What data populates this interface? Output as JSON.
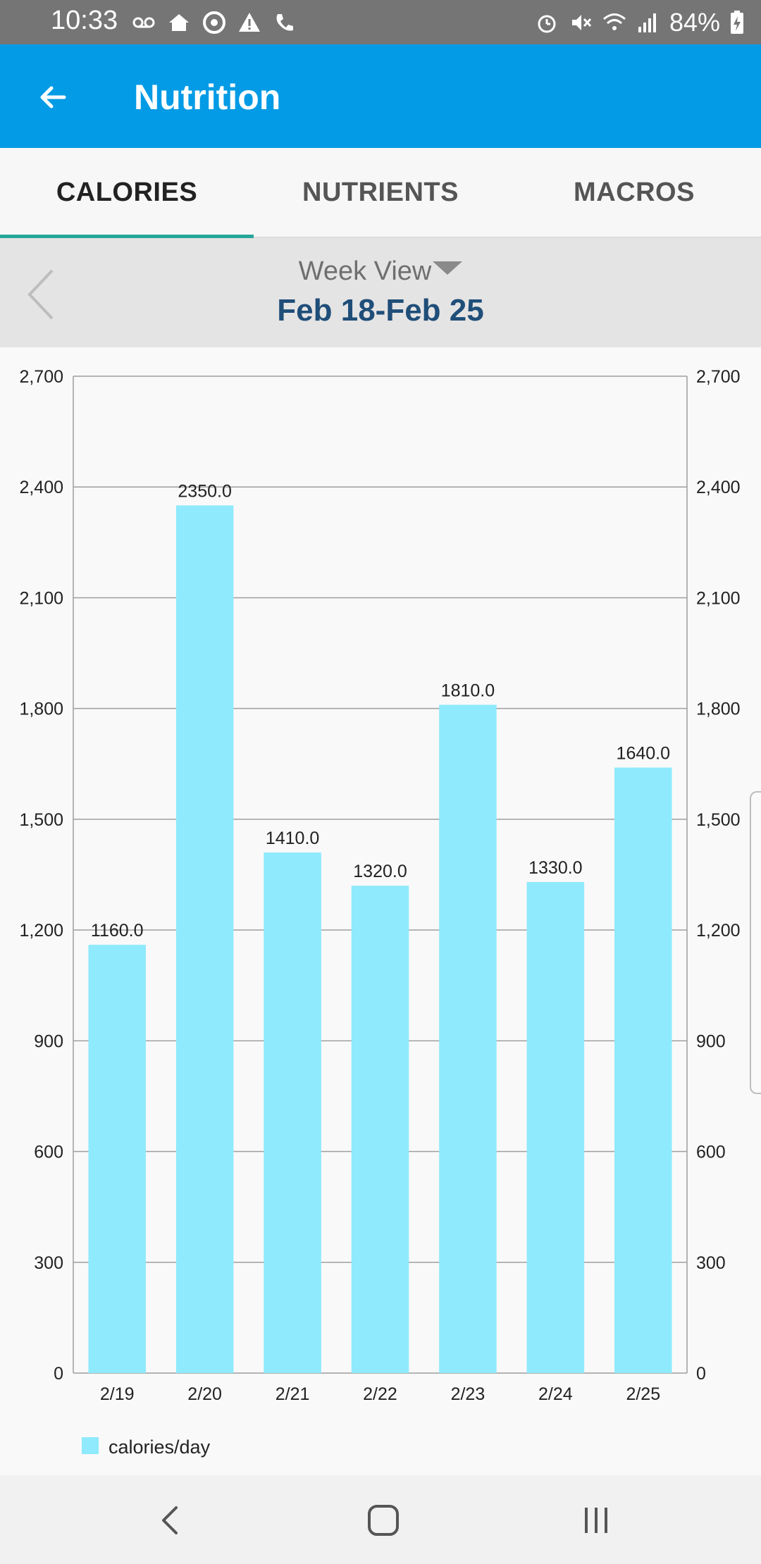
{
  "status_bar": {
    "time": "10:33",
    "battery": "84%",
    "left_icons": [
      "voicemail-icon",
      "home-icon",
      "chrome-icon",
      "alert-icon",
      "wifi-call-icon"
    ],
    "right_icons": [
      "alarm-icon",
      "mute-icon",
      "wifi-icon",
      "signal-icon",
      "battery-charging-icon"
    ]
  },
  "app_bar": {
    "title": "Nutrition",
    "color": "#039be5"
  },
  "tabs": [
    {
      "label": "CALORIES",
      "active": true
    },
    {
      "label": "NUTRIENTS",
      "active": false
    },
    {
      "label": "MACROS",
      "active": false
    }
  ],
  "week_selector": {
    "mode": "Week View",
    "range": "Feb 18-Feb 25"
  },
  "chart_data": {
    "type": "bar",
    "categories": [
      "2/19",
      "2/20",
      "2/21",
      "2/22",
      "2/23",
      "2/24",
      "2/25"
    ],
    "series": [
      {
        "name": "calories/day",
        "values": [
          1160.0,
          2350.0,
          1410.0,
          1320.0,
          1810.0,
          1330.0,
          1640.0
        ],
        "labels": [
          "1160.0",
          "2350.0",
          "1410.0",
          "1320.0",
          "1810.0",
          "1330.0",
          "1640.0"
        ],
        "color": "#8eeafc"
      }
    ],
    "ylim": [
      0,
      2700
    ],
    "yticks": [
      0,
      300,
      600,
      900,
      1200,
      1500,
      1800,
      2100,
      2400,
      2700
    ],
    "ytick_labels": [
      "0",
      "300",
      "600",
      "900",
      "1,200",
      "1,500",
      "1,800",
      "2,100",
      "2,400",
      "2,700"
    ],
    "dual_y_axis": true,
    "grid": true,
    "legend_position": "bottom-left"
  },
  "nav_bar": {
    "buttons": [
      "back-icon",
      "home-icon",
      "recents-icon"
    ]
  }
}
